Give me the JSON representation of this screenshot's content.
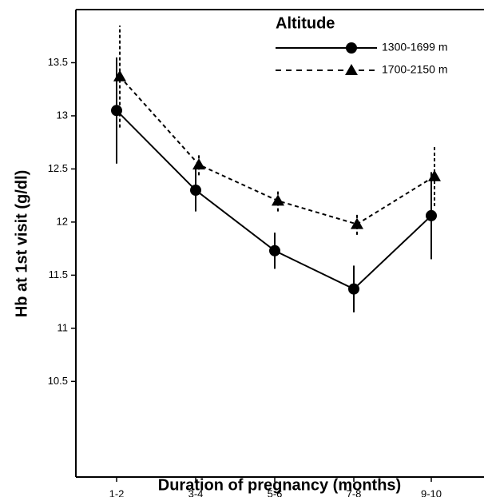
{
  "chart_data": {
    "type": "line",
    "x_label": "Duration of pregnancy (months)",
    "y_label": "Hb at 1st visit (g/dl)",
    "legend_title": "Altitude",
    "categories": [
      "1-2",
      "3-4",
      "5-6",
      "7-8",
      "9-10"
    ],
    "series": [
      {
        "name": "1300-1699 m",
        "color": "#000000",
        "marker": "circle",
        "dash": "solid",
        "values": [
          13.05,
          12.3,
          11.73,
          11.37,
          12.06
        ],
        "errors": [
          0.5,
          0.2,
          0.17,
          0.22,
          0.41
        ]
      },
      {
        "name": "1700-2150 m",
        "color": "#000000",
        "marker": "triangle",
        "dash": "dashed",
        "values": [
          13.37,
          12.54,
          12.2,
          11.98,
          12.43
        ],
        "errors": [
          0.48,
          0.1,
          0.1,
          0.1,
          0.28
        ]
      }
    ],
    "ylim": [
      9.6,
      14.0
    ],
    "yticks": [
      10.5,
      11.0,
      11.5,
      12.0,
      12.5,
      13.0,
      13.5
    ],
    "legend_position": "upper right"
  }
}
